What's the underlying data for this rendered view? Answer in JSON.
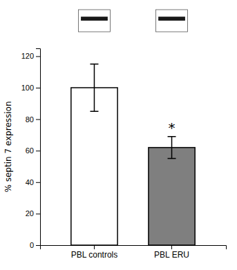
{
  "chart_data": {
    "type": "bar",
    "categories": [
      "PBL controls",
      "PBL ERU"
    ],
    "values": [
      100,
      62
    ],
    "errors": [
      15,
      7
    ],
    "colors": [
      "#ffffff",
      "#7f7f7f"
    ],
    "ylabel": "% septin 7 expression",
    "ylim": [
      0,
      125
    ],
    "yticks": [
      0,
      20,
      40,
      60,
      80,
      100,
      120
    ],
    "annotations": [
      {
        "text": "*",
        "category": "PBL ERU",
        "y": 72
      }
    ]
  }
}
